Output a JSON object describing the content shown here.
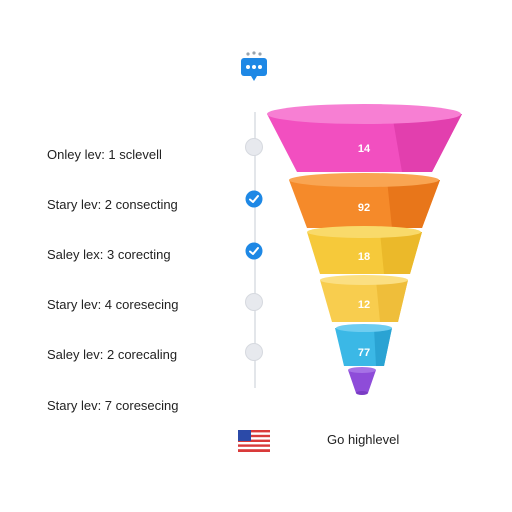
{
  "steps": [
    {
      "label": "Onley lev: 1 sclevell",
      "status": "pending"
    },
    {
      "label": "Stary lev: 2 consecting",
      "status": "done"
    },
    {
      "label": "Saley lex: 3 corecting",
      "status": "done"
    },
    {
      "label": "Stary lev: 4 coresecing",
      "status": "pending"
    },
    {
      "label": "Saley lev: 2 corecaling",
      "status": "pending"
    },
    {
      "label": "Stary lev: 7 coresecing",
      "status": "none"
    }
  ],
  "funnel": {
    "stages": [
      {
        "value": "14",
        "color": "#f24fc0"
      },
      {
        "value": "92",
        "color": "#f58a2a"
      },
      {
        "value": "18",
        "color": "#f6c93a"
      },
      {
        "value": "12",
        "color": "#f8cd4e"
      },
      {
        "value": "77",
        "color": "#3bb8e6"
      },
      {
        "value": "",
        "color": "#8e4cd9"
      }
    ]
  },
  "footer": {
    "text": "Go highlevel"
  },
  "colors": {
    "accent": "#1e88e5",
    "line": "#e3e6ea"
  }
}
